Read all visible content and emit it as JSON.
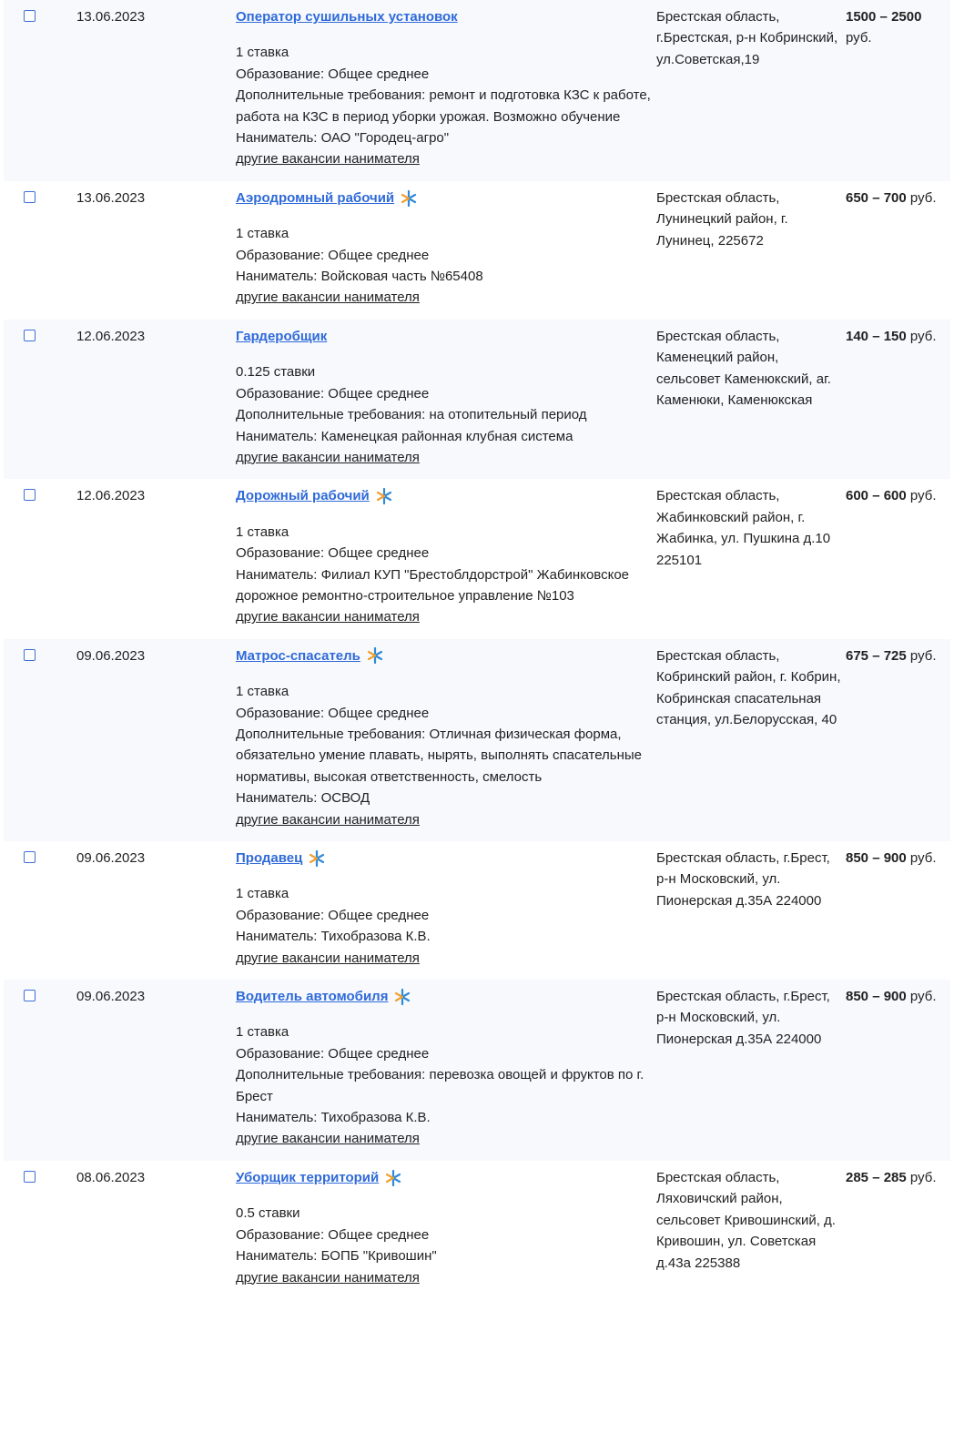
{
  "colors": {
    "link": "#2f6ad9",
    "row_alt_bg": "#f7f9fd",
    "star_blue": "#2f8ad9",
    "star_orange": "#f0a030"
  },
  "other_link_label": "другие вакансии нанимателя",
  "currency": "руб.",
  "rows": [
    {
      "date": "13.06.2023",
      "title": "Оператор сушильных установок",
      "star": false,
      "details": [
        "1 ставка",
        "Образование: Общее среднее",
        "Дополнительные требования: ремонт и подготовка КЗС к работе, работа на КЗС в период уборки урожая. Возможно обучение",
        "Наниматель: ОАО \"Городец-агро\""
      ],
      "address": "Брестская область, г.Брестская, р-н Кобринский, ул.Советская,19",
      "salary_from": "1500",
      "salary_to": "2500"
    },
    {
      "date": "13.06.2023",
      "title": "Аэродромный рабочий",
      "star": true,
      "details": [
        "1 ставка",
        "Образование: Общее среднее",
        "Наниматель: Войсковая часть №65408"
      ],
      "address": "Брестская область, Лунинецкий район, г. Лунинец, 225672",
      "salary_from": "650",
      "salary_to": "700"
    },
    {
      "date": "12.06.2023",
      "title": "Гардеробщик",
      "star": false,
      "details": [
        "0.125 ставки",
        "Образование: Общее среднее",
        "Дополнительные требования: на отопительный период",
        "Наниматель: Каменецкая районная клубная система"
      ],
      "address": "Брестская область, Каменецкий район, сельсовет Каменюкский, аг. Каменюки, Каменюкская",
      "salary_from": "140",
      "salary_to": "150"
    },
    {
      "date": "12.06.2023",
      "title": "Дорожный рабочий",
      "star": true,
      "details": [
        "1 ставка",
        "Образование: Общее среднее",
        "Наниматель: Филиал КУП \"Брестоблдорстрой\" Жабинковское дорожное ремонтно-строительное управление №103"
      ],
      "address": "Брестская область, Жабинковский район, г. Жабинка, ул. Пушкина д.10 225101",
      "salary_from": "600",
      "salary_to": "600"
    },
    {
      "date": "09.06.2023",
      "title": "Матрос-спасатель",
      "star": true,
      "details": [
        "1 ставка",
        "Образование: Общее среднее",
        "Дополнительные требования: Отличная физическая форма, обязательно умение плавать, нырять, выполнять спасательные нормативы, высокая ответственность, смелость",
        "Наниматель: ОСВОД"
      ],
      "address": "Брестская область, Кобринский район, г. Кобрин, Кобринская спасательная станция, ул.Белорусская, 40",
      "salary_from": "675",
      "salary_to": "725"
    },
    {
      "date": "09.06.2023",
      "title": "Продавец",
      "star": true,
      "details": [
        "1 ставка",
        "Образование: Общее среднее",
        "Наниматель: Тихобразова К.В."
      ],
      "address": "Брестская область, г.Брест, р-н Московский, ул. Пионерская д.35А 224000",
      "salary_from": "850",
      "salary_to": "900"
    },
    {
      "date": "09.06.2023",
      "title": "Водитель автомобиля",
      "star": true,
      "details": [
        "1 ставка",
        "Образование: Общее среднее",
        "Дополнительные требования: перевозка овощей и фруктов по г. Брест",
        "Наниматель: Тихобразова К.В."
      ],
      "address": "Брестская область, г.Брест, р-н Московский, ул. Пионерская д.35А 224000",
      "salary_from": "850",
      "salary_to": "900"
    },
    {
      "date": "08.06.2023",
      "title": "Уборщик территорий",
      "star": true,
      "details": [
        "0.5 ставки",
        "Образование: Общее среднее",
        "Наниматель: БОПБ \"Кривошин\""
      ],
      "address": "Брестская область, Ляховичский район, сельсовет Кривошинский, д. Кривошин, ул. Советская д.43а 225388",
      "salary_from": "285",
      "salary_to": "285"
    }
  ]
}
